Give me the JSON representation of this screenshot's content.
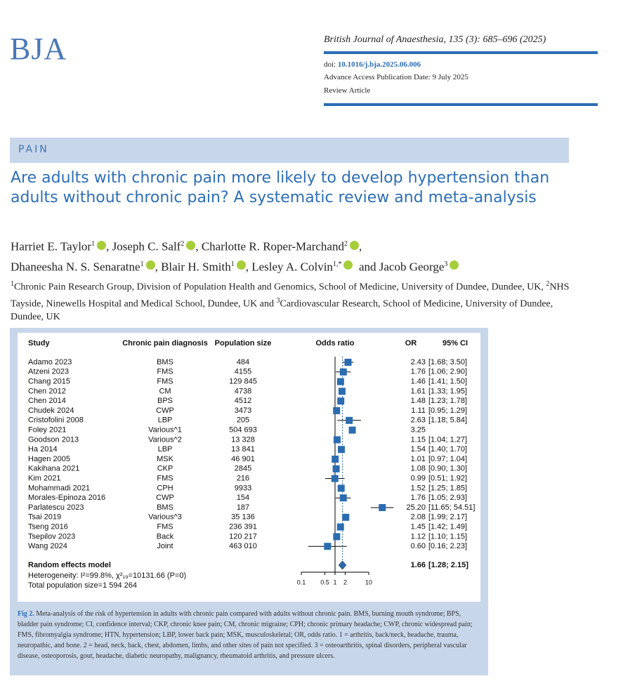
{
  "header": {
    "logo": "BJA",
    "journal": "British Journal of Anaesthesia, 135 (3): 685–696 (2025)",
    "doi_label": "doi:",
    "doi": "10.1016/j.bja.2025.06.006",
    "advance_access": "Advance Access Publication Date: 9 July 2025",
    "article_type": "Review Article"
  },
  "section": "PAIN",
  "title": "Are adults with chronic pain more likely to develop hypertension than adults without chronic pain? A systematic review and meta-analysis",
  "authors": [
    {
      "name": "Harriet E. Taylor",
      "sup": "1",
      "after": ","
    },
    {
      "name": "Joseph C. Salf",
      "sup": "2",
      "after": ","
    },
    {
      "name": "Charlotte R. Roper-Marchand",
      "sup": "2",
      "after": ","
    },
    {
      "name": "Dhaneesha N. S. Senaratne",
      "sup": "1",
      "after": ","
    },
    {
      "name": "Blair H. Smith",
      "sup": "1",
      "after": ","
    },
    {
      "name": "Lesley A. Colvin",
      "sup": "1,*",
      "after": "and"
    },
    {
      "name": "Jacob George",
      "sup": "3"
    }
  ],
  "affiliations": [
    {
      "sup": "1",
      "text": "Chronic Pain Research Group, Division of Population Health and Genomics, School of Medicine, University of Dundee, Dundee, UK, "
    },
    {
      "sup": "2",
      "text": "NHS Tayside, Ninewells Hospital and Medical School, Dundee, UK and "
    },
    {
      "sup": "3",
      "text": "Cardiovascular Research, School of Medicine, University of Dundee, Dundee, UK"
    }
  ],
  "chart_data": {
    "type": "forest",
    "columns": {
      "study": "Study",
      "diagnosis": "Chronic pain diagnosis",
      "population": "Population size",
      "plot": "Odds ratio",
      "or": "OR",
      "ci": "95% CI"
    },
    "studies": [
      "Adamo 2023",
      "Atzeni 2023",
      "Chang 2015",
      "Chen 2012",
      "Chen 2014",
      "Chudek 2024",
      "Cristofolini 2008",
      "Foley 2021",
      "Goodson 2013",
      "Ha 2014",
      "Hagen 2005",
      "Kakihana 2021",
      "Kim 2021",
      "Mohammadi 2021",
      "Morales-Epinoza 2016",
      "Parlatescu 2023",
      "Tsai 2019",
      "Tseng 2016",
      "Tsepilov 2023",
      "Wang 2024"
    ],
    "diagnosis": [
      "BMS",
      "FMS",
      "FMS",
      "CM",
      "BPS",
      "CWP",
      "LBP",
      "Various^1",
      "Various^2",
      "LBP",
      "MSK",
      "CKP",
      "FMS",
      "CPH",
      "CWP",
      "BMS",
      "Various^3",
      "FMS",
      "Back",
      "Joint"
    ],
    "population": [
      "484",
      "4155",
      "129 845",
      "4738",
      "4512",
      "3473",
      "205",
      "504 693",
      "13 328",
      "13 841",
      "46 901",
      "2845",
      "216",
      "9933",
      "154",
      "187",
      "35 136",
      "236 391",
      "120 217",
      "463 010"
    ],
    "values": [
      2.43,
      1.76,
      1.46,
      1.61,
      1.48,
      1.11,
      2.63,
      3.25,
      1.15,
      1.54,
      1.01,
      1.08,
      0.99,
      1.52,
      1.76,
      25.2,
      2.08,
      1.45,
      1.12,
      0.6
    ],
    "value_labels": [
      "2.43",
      "1.76",
      "1.46",
      "1.61",
      "1.48",
      "1.11",
      "2.63",
      "3.25",
      "1.15",
      "1.54",
      "1.01",
      "1.08",
      "0.99",
      "1.52",
      "1.76",
      "25.20",
      "2.08",
      "1.45",
      "1.12",
      "0.60"
    ],
    "ci_lower": [
      1.68,
      1.06,
      1.41,
      1.33,
      1.23,
      0.95,
      1.18,
      null,
      1.04,
      1.4,
      0.97,
      0.9,
      0.51,
      1.25,
      1.05,
      11.65,
      1.99,
      1.42,
      1.1,
      0.16
    ],
    "ci_upper": [
      3.5,
      2.9,
      1.5,
      1.95,
      1.78,
      1.29,
      5.84,
      null,
      1.27,
      1.7,
      1.04,
      1.3,
      1.92,
      1.85,
      2.93,
      54.51,
      2.17,
      1.49,
      1.15,
      2.23
    ],
    "ci_labels": [
      "[1.68; 3.50]",
      "[1.06; 2.90]",
      "[1.41; 1.50]",
      "[1.33; 1.95]",
      "[1.23; 1.78]",
      "[0.95; 1.29]",
      "[1.18; 5.84]",
      null,
      "[1.04; 1.27]",
      "[1.40; 1.70]",
      "[0.97; 1.04]",
      "[0.90; 1.30]",
      "[0.51; 1.92]",
      "[1.25; 1.85]",
      "[1.05; 2.93]",
      "[11.65; 54.51]",
      "[1.99; 2.17]",
      "[1.42; 1.49]",
      "[1.10; 1.15]",
      "[0.16; 2.23]"
    ],
    "summary": {
      "name": "Random effects model",
      "value": 1.66,
      "ci_lower": 1.28,
      "ci_upper": 2.15,
      "value_label": "1.66",
      "ci_label": "[1.28; 2.15]"
    },
    "heterogeneity": "Heterogeneity: I²=99.8%, χ²₁₉=10131.66 (P=0)",
    "total": "Total population size=1 594 264",
    "xlim": [
      0.1,
      10
    ],
    "xticks": [
      0.1,
      0.5,
      1,
      2,
      10
    ],
    "log_x": true,
    "color": "#2b6cb0"
  },
  "caption": {
    "label": "Fig 2.",
    "text": "Meta-analysis of the risk of hypertension in adults with chronic pain compared with adults without chronic pain. BMS, burning mouth syndrome; BPS, bladder pain syndrome; CI, confidence interval; CKP, chronic knee pain; CM, chronic migraine; CPH; chronic primary headache; CWP, chronic widespread pain; FMS, fibromyalgia syndrome; HTN, hypertension; LBP, lower back pain; MSK, musculoskeletal; OR, odds ratio. 1 = arthritis, back/neck, headache, trauma, neuropathic, and bone. 2 = head, neck, back, chest, abdomen, limbs, and other sites of pain not specified. 3 = osteoarthritis, spinal disorders, peripheral vascular disease, osteoporosis, gout, headache, diabetic neuropathy, malignancy, rheumatoid arthritis, and pressure ulcers."
  }
}
